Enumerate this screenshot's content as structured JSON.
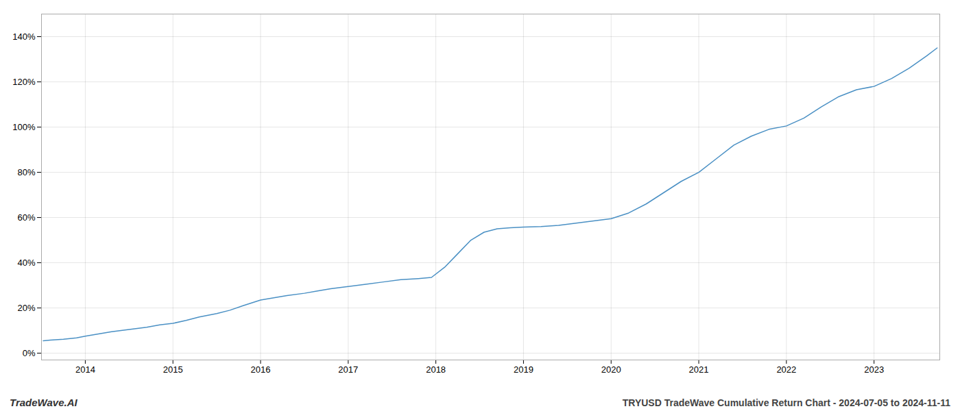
{
  "chart_data": {
    "type": "line",
    "title": "TRYUSD TradeWave Cumulative Return Chart - 2024-07-05 to 2024-11-11",
    "annotations": [
      "TradeWave.AI"
    ],
    "color": "#4a90c4",
    "grid": true,
    "xlim": [
      2013.5,
      2023.75
    ],
    "xticks": [
      2014,
      2015,
      2016,
      2017,
      2018,
      2019,
      2020,
      2021,
      2022,
      2023
    ],
    "ylim": [
      -3,
      150
    ],
    "yticks": [
      {
        "value": 0,
        "label": "0%"
      },
      {
        "value": 20,
        "label": "20%"
      },
      {
        "value": 40,
        "label": "40%"
      },
      {
        "value": 60,
        "label": "60%"
      },
      {
        "value": 80,
        "label": "80%"
      },
      {
        "value": 100,
        "label": "100%"
      },
      {
        "value": 120,
        "label": "120%"
      },
      {
        "value": 140,
        "label": "140%"
      }
    ],
    "x": [
      2013.52,
      2013.6,
      2013.75,
      2013.9,
      2014.0,
      2014.15,
      2014.3,
      2014.5,
      2014.7,
      2014.85,
      2015.0,
      2015.15,
      2015.3,
      2015.5,
      2015.65,
      2015.8,
      2016.0,
      2016.15,
      2016.3,
      2016.5,
      2016.65,
      2016.8,
      2017.0,
      2017.2,
      2017.4,
      2017.6,
      2017.8,
      2017.95,
      2018.1,
      2018.25,
      2018.4,
      2018.55,
      2018.7,
      2018.85,
      2019.0,
      2019.2,
      2019.4,
      2019.6,
      2019.8,
      2020.0,
      2020.2,
      2020.4,
      2020.6,
      2020.8,
      2021.0,
      2021.2,
      2021.4,
      2021.6,
      2021.8,
      2022.0,
      2022.2,
      2022.4,
      2022.6,
      2022.8,
      2023.0,
      2023.2,
      2023.4,
      2023.6,
      2023.72
    ],
    "values": [
      5.5,
      5.8,
      6.2,
      6.8,
      7.5,
      8.5,
      9.5,
      10.5,
      11.5,
      12.5,
      13.2,
      14.5,
      16.0,
      17.5,
      19.0,
      21.0,
      23.5,
      24.5,
      25.5,
      26.5,
      27.5,
      28.5,
      29.5,
      30.5,
      31.5,
      32.5,
      33.0,
      33.5,
      38.0,
      44.0,
      50.0,
      53.5,
      55.0,
      55.5,
      55.8,
      56.0,
      56.5,
      57.5,
      58.5,
      59.5,
      62.0,
      66.0,
      71.0,
      76.0,
      80.0,
      86.0,
      92.0,
      96.0,
      99.0,
      100.5,
      104.0,
      109.0,
      113.5,
      116.5,
      118.0,
      121.5,
      126.0,
      131.5,
      135.0
    ]
  }
}
